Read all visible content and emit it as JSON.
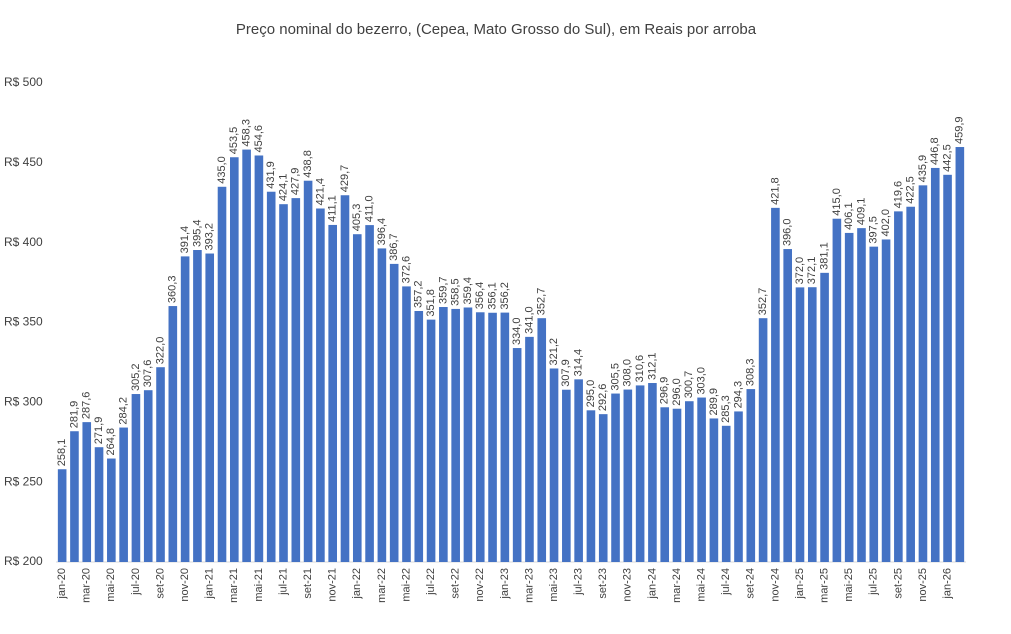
{
  "chart_data": {
    "type": "bar",
    "title": "Preço nominal do bezerro, (Cepea, Mato Grosso do Sul), em Reais por arroba",
    "categories": [
      "jan-20",
      null,
      "mar-20",
      null,
      "mai-20",
      null,
      "jul-20",
      null,
      "set-20",
      null,
      "nov-20",
      null,
      "jan-21",
      null,
      "mar-21",
      null,
      "mai-21",
      null,
      "jul-21",
      null,
      "set-21",
      null,
      "nov-21",
      null,
      "jan-22",
      null,
      "mar-22",
      null,
      "mai-22",
      null,
      "jul-22",
      null,
      "set-22",
      null,
      "nov-22",
      null,
      "jan-23",
      null,
      "mar-23",
      null,
      "mai-23",
      null,
      "jul-23",
      null,
      "set-23",
      null,
      "nov-23",
      null,
      "jan-24",
      null,
      "mar-24",
      null,
      "mai-24",
      null,
      "jul-24",
      null,
      "set-24",
      null,
      "nov-24",
      null,
      "jan-25",
      null,
      "mar-25",
      null,
      "mai-25",
      null,
      "jul-25",
      null,
      "set-25",
      null,
      "nov-25",
      null,
      "jan-26",
      null
    ],
    "values": [
      258.1,
      281.9,
      287.6,
      271.9,
      264.8,
      284.2,
      305.2,
      307.6,
      322.0,
      360.3,
      391.4,
      395.4,
      393.2,
      435.0,
      453.5,
      458.3,
      454.6,
      431.9,
      424.1,
      427.9,
      438.8,
      421.4,
      411.1,
      429.7,
      405.3,
      411.0,
      396.4,
      386.7,
      372.6,
      357.2,
      351.8,
      359.7,
      358.5,
      359.4,
      356.4,
      356.1,
      356.2,
      334.0,
      341.0,
      352.7,
      321.2,
      307.9,
      314.4,
      295.0,
      292.6,
      305.5,
      308.0,
      310.6,
      312.1,
      296.9,
      296.0,
      300.7,
      303.0,
      289.9,
      285.3,
      294.3,
      308.3,
      352.7,
      421.8,
      396.0,
      372.0,
      372.1,
      381.1,
      415.0,
      406.1,
      409.1,
      397.5,
      402.0,
      419.6,
      422.5,
      435.9,
      446.8,
      442.5,
      459.9
    ],
    "value_labels": [
      "258,1",
      "281,9",
      "287,6",
      "271,9",
      "264,8",
      "284,2",
      "305,2",
      "307,6",
      "322,0",
      "360,3",
      "391,4",
      "395,4",
      "393,2",
      "435,0",
      "453,5",
      "458,3",
      "454,6",
      "431,9",
      "424,1",
      "427,9",
      "438,8",
      "421,4",
      "411,1",
      "429,7",
      "405,3",
      "411,0",
      "396,4",
      "386,7",
      "372,6",
      "357,2",
      "351,8",
      "359,7",
      "358,5",
      "359,4",
      "356,4",
      "356,1",
      "356,2",
      "334,0",
      "341,0",
      "352,7",
      "321,2",
      "307,9",
      "314,4",
      "295,0",
      "292,6",
      "305,5",
      "308,0",
      "310,6",
      "312,1",
      "296,9",
      "296,0",
      "300,7",
      "303,0",
      "289,9",
      "285,3",
      "294,3",
      "308,3",
      "352,7",
      "421,8",
      "396,0",
      "372,0",
      "372,1",
      "381,1",
      "415,0",
      "406,1",
      "409,1",
      "397,5",
      "402,0",
      "419,6",
      "422,5",
      "435,9",
      "446,8",
      "442,5",
      "459,9"
    ],
    "color": "#4472c4",
    "ylim": [
      200,
      500
    ],
    "yticks": [
      {
        "value": 200,
        "label": "R$ 200"
      },
      {
        "value": 250,
        "label": "R$ 250"
      },
      {
        "value": 300,
        "label": "R$ 300"
      },
      {
        "value": 350,
        "label": "R$ 350"
      },
      {
        "value": 400,
        "label": "R$ 400"
      },
      {
        "value": 450,
        "label": "R$ 450"
      },
      {
        "value": 500,
        "label": "R$ 500"
      }
    ],
    "grid": false
  }
}
